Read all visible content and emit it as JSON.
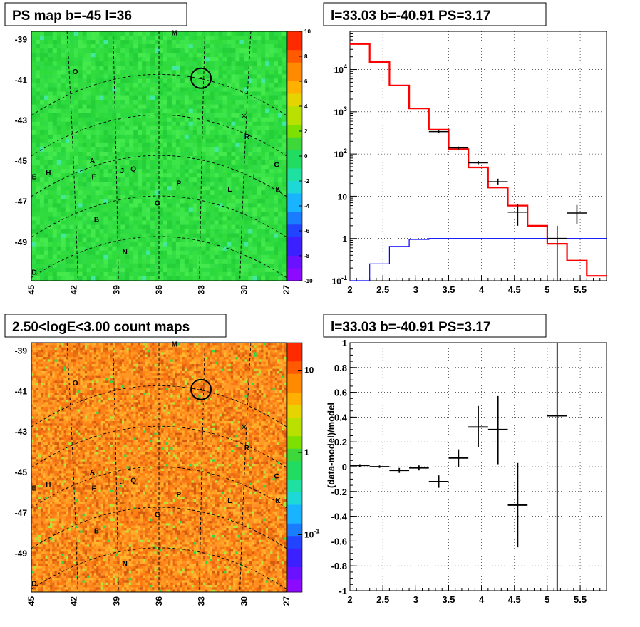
{
  "panels": {
    "map_top": {
      "title": "PS map b=-45 l=36",
      "y_ticks": [
        "-39",
        "-41",
        "-43",
        "-45",
        "-47",
        "-49"
      ],
      "x_ticks": [
        "45",
        "42",
        "39",
        "36",
        "33",
        "30",
        "27"
      ],
      "colorbar_ticks": [
        "10",
        "8",
        "6",
        "4",
        "2",
        "0",
        "-2",
        "-4",
        "-6",
        "-8",
        "-10"
      ],
      "labels": [
        {
          "t": "M",
          "lon": 34.9,
          "lat": -38.8
        },
        {
          "t": "O",
          "lon": 41.9,
          "lat": -40.7
        },
        {
          "t": "R",
          "lon": 29.8,
          "lat": -43.9
        },
        {
          "t": "A",
          "lon": 40.7,
          "lat": -45.1
        },
        {
          "t": "C",
          "lon": 27.7,
          "lat": -45.3
        },
        {
          "t": "E",
          "lon": 44.8,
          "lat": -45.9
        },
        {
          "t": "H",
          "lon": 43.8,
          "lat": -45.7
        },
        {
          "t": "J",
          "lon": 38.6,
          "lat": -45.6
        },
        {
          "t": "Q",
          "lon": 37.8,
          "lat": -45.5
        },
        {
          "t": "F",
          "lon": 40.6,
          "lat": -45.9
        },
        {
          "t": "I",
          "lon": 29.3,
          "lat": -45.9
        },
        {
          "t": "P",
          "lon": 34.6,
          "lat": -46.2
        },
        {
          "t": "L",
          "lon": 31.0,
          "lat": -46.5
        },
        {
          "t": "K",
          "lon": 27.6,
          "lat": -46.5
        },
        {
          "t": "G",
          "lon": 36.1,
          "lat": -47.2
        },
        {
          "t": "B",
          "lon": 40.4,
          "lat": -48.0
        },
        {
          "t": "N",
          "lon": 38.4,
          "lat": -49.6
        },
        {
          "t": "D",
          "lon": 44.8,
          "lat": -50.6
        }
      ],
      "source_circle": {
        "lon": 33.03,
        "lat": -40.91
      }
    },
    "spectrum": {
      "title": "l=33.03 b=-40.91 PS=3.17",
      "chart_data": {
        "type": "line",
        "x_scale": "linear",
        "y_scale": "log",
        "xlim": [
          2,
          5.9
        ],
        "ylim": [
          0.1,
          80000
        ],
        "x_ticks": [
          "2",
          "2.5",
          "3",
          "3.5",
          "4",
          "4.5",
          "5",
          "5.5"
        ],
        "y_ticks": [
          "10^-1",
          "1",
          "10",
          "10^2",
          "10^3",
          "10^4"
        ],
        "series": [
          {
            "color": "#ff0000",
            "kind": "step",
            "edges": [
              2.0,
              2.3,
              2.6,
              2.9,
              3.2,
              3.5,
              3.8,
              4.1,
              4.4,
              4.7,
              5.0,
              5.3,
              5.6,
              5.9
            ],
            "values": [
              40000,
              15000,
              4200,
              1200,
              380,
              130,
              48,
              16,
              6,
              2,
              0.75,
              0.3,
              0.13
            ]
          },
          {
            "color": "#0000ff",
            "kind": "step",
            "edges": [
              2.0,
              2.3,
              2.6,
              2.9,
              3.2,
              3.5,
              3.8,
              4.1,
              4.4,
              4.7,
              5.0,
              5.3,
              5.6,
              5.9
            ],
            "values": [
              0.1,
              0.25,
              0.65,
              0.95,
              1.0,
              1.0,
              1.0,
              1.0,
              1.0,
              1.0,
              1.0,
              1.0,
              1.0
            ]
          },
          {
            "color": "#000000",
            "kind": "points",
            "x": [
              3.35,
              3.65,
              3.95,
              4.25,
              4.55,
              5.15,
              5.45
            ],
            "xerr": [
              0.15,
              0.15,
              0.15,
              0.15,
              0.15,
              0.15,
              0.15
            ],
            "y": [
              340,
              140,
              62,
              22,
              4.2,
              1.0,
              4.0
            ],
            "ylo": [
              320,
              130,
              57,
              19,
              2.0,
              0.1,
              2.2
            ],
            "yhi": [
              360,
              150,
              68,
              26,
              6.5,
              2.0,
              6.2
            ]
          }
        ]
      }
    },
    "map_bottom": {
      "title": "2.50<logE<3.00 count maps",
      "y_ticks": [
        "-39",
        "-41",
        "-43",
        "-45",
        "-47",
        "-49"
      ],
      "x_ticks": [
        "45",
        "42",
        "39",
        "36",
        "33",
        "30",
        "27"
      ],
      "colorbar_ticks": [
        "10",
        "1",
        "10^-1"
      ],
      "labels": [
        {
          "t": "M",
          "lon": 34.9,
          "lat": -38.8
        },
        {
          "t": "O",
          "lon": 41.9,
          "lat": -40.7
        },
        {
          "t": "R",
          "lon": 29.8,
          "lat": -43.9
        },
        {
          "t": "A",
          "lon": 40.7,
          "lat": -45.1
        },
        {
          "t": "C",
          "lon": 27.7,
          "lat": -45.3
        },
        {
          "t": "E",
          "lon": 44.8,
          "lat": -45.9
        },
        {
          "t": "H",
          "lon": 43.8,
          "lat": -45.7
        },
        {
          "t": "J",
          "lon": 38.6,
          "lat": -45.6
        },
        {
          "t": "Q",
          "lon": 37.8,
          "lat": -45.5
        },
        {
          "t": "F",
          "lon": 40.6,
          "lat": -45.9
        },
        {
          "t": "I",
          "lon": 29.3,
          "lat": -45.9
        },
        {
          "t": "P",
          "lon": 34.6,
          "lat": -46.2
        },
        {
          "t": "L",
          "lon": 31.0,
          "lat": -46.5
        },
        {
          "t": "K",
          "lon": 27.6,
          "lat": -46.5
        },
        {
          "t": "G",
          "lon": 36.1,
          "lat": -47.2
        },
        {
          "t": "B",
          "lon": 40.4,
          "lat": -48.0
        },
        {
          "t": "N",
          "lon": 38.4,
          "lat": -49.6
        },
        {
          "t": "D",
          "lon": 44.8,
          "lat": -50.6
        }
      ],
      "source_circle": {
        "lon": 33.03,
        "lat": -40.91
      }
    },
    "residual": {
      "title": "l=33.03 b=-40.91 PS=3.17",
      "chart_data": {
        "type": "scatter",
        "ylabel": "(data-model)/model",
        "xlim": [
          2,
          5.9
        ],
        "ylim": [
          -1,
          1
        ],
        "x_ticks": [
          "2",
          "2.5",
          "3",
          "3.5",
          "4",
          "4.5",
          "5",
          "5.5"
        ],
        "y_ticks": [
          "1",
          "0.8",
          "0.6",
          "0.4",
          "0.2",
          "0",
          "-0.2",
          "-0.4",
          "-0.6",
          "-0.8",
          "-1"
        ],
        "series": [
          {
            "color": "#000000",
            "x": [
              2.15,
              2.45,
              2.75,
              3.05,
              3.35,
              3.65,
              3.95,
              4.25,
              4.55,
              5.15
            ],
            "xerr": [
              0.15,
              0.15,
              0.15,
              0.15,
              0.15,
              0.15,
              0.15,
              0.15,
              0.15,
              0.15
            ],
            "y": [
              0.01,
              0.0,
              -0.03,
              -0.01,
              -0.12,
              0.07,
              0.32,
              0.3,
              -0.31,
              0.41
            ],
            "ylo": [
              0.0,
              -0.01,
              -0.05,
              -0.03,
              -0.17,
              0.0,
              0.16,
              0.02,
              -0.65,
              -1.0
            ],
            "yhi": [
              0.02,
              0.01,
              -0.01,
              0.01,
              -0.07,
              0.14,
              0.49,
              0.57,
              0.03,
              1.0
            ]
          }
        ]
      }
    }
  }
}
